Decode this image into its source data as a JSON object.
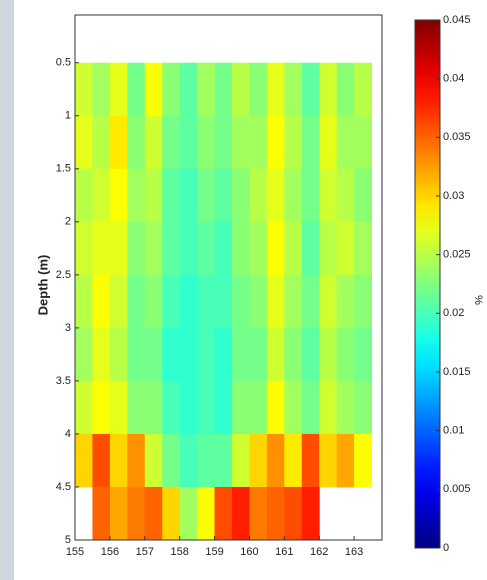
{
  "chart_data": {
    "type": "heatmap",
    "y_label": "Depth (m)",
    "colorbar_label": "%",
    "colormap": "jet",
    "x": [
      155.25,
      155.75,
      156.25,
      156.75,
      157.25,
      157.75,
      158.25,
      158.75,
      159.25,
      159.75,
      160.25,
      160.75,
      161.25,
      161.75,
      162.25,
      162.75,
      163.25
    ],
    "y": [
      0.75,
      1.25,
      1.75,
      2.25,
      2.75,
      3.25,
      3.75,
      4.25,
      4.75
    ],
    "z": [
      [
        0.026,
        0.024,
        0.027,
        0.022,
        0.028,
        0.023,
        0.021,
        0.024,
        0.022,
        0.025,
        0.023,
        0.027,
        0.024,
        0.021,
        0.026,
        0.023,
        0.025
      ],
      [
        0.027,
        0.025,
        0.029,
        0.023,
        0.026,
        0.022,
        0.021,
        0.023,
        0.022,
        0.024,
        0.024,
        0.028,
        0.025,
        0.022,
        0.027,
        0.024,
        0.024
      ],
      [
        0.025,
        0.026,
        0.028,
        0.024,
        0.025,
        0.021,
        0.02,
        0.022,
        0.021,
        0.023,
        0.025,
        0.027,
        0.024,
        0.022,
        0.026,
        0.025,
        0.023
      ],
      [
        0.026,
        0.027,
        0.027,
        0.023,
        0.024,
        0.021,
        0.02,
        0.021,
        0.02,
        0.023,
        0.024,
        0.028,
        0.025,
        0.021,
        0.025,
        0.026,
        0.024
      ],
      [
        0.025,
        0.028,
        0.026,
        0.022,
        0.023,
        0.02,
        0.019,
        0.02,
        0.02,
        0.022,
        0.023,
        0.027,
        0.024,
        0.022,
        0.026,
        0.024,
        0.023
      ],
      [
        0.024,
        0.027,
        0.025,
        0.022,
        0.022,
        0.019,
        0.019,
        0.02,
        0.019,
        0.022,
        0.022,
        0.026,
        0.023,
        0.021,
        0.025,
        0.023,
        0.022
      ],
      [
        0.026,
        0.028,
        0.027,
        0.023,
        0.023,
        0.02,
        0.019,
        0.02,
        0.019,
        0.023,
        0.023,
        0.028,
        0.024,
        0.022,
        0.026,
        0.024,
        0.023
      ],
      [
        0.03,
        0.036,
        0.03,
        0.033,
        0.026,
        0.022,
        0.02,
        0.021,
        0.021,
        0.026,
        0.03,
        0.033,
        0.029,
        0.036,
        0.03,
        0.032,
        0.028
      ],
      [
        null,
        0.035,
        0.032,
        0.034,
        0.035,
        0.03,
        0.024,
        0.028,
        0.036,
        0.038,
        0.034,
        0.035,
        0.036,
        0.038,
        null,
        null,
        null
      ]
    ],
    "cell_width": 0.5,
    "cell_height": 0.5,
    "xlim": [
      155,
      163.8
    ],
    "xticks": [
      155,
      156,
      157,
      158,
      159,
      160,
      161,
      162,
      163
    ],
    "ylim": [
      0.05,
      5
    ],
    "y_inverted": true,
    "yticks": [
      0.5,
      1,
      1.5,
      2,
      2.5,
      3,
      3.5,
      4,
      4.5,
      5
    ],
    "clim": [
      0,
      0.045
    ],
    "cticks": [
      0,
      0.005,
      0.01,
      0.015,
      0.02,
      0.025,
      0.03,
      0.035,
      0.04,
      0.045
    ]
  }
}
